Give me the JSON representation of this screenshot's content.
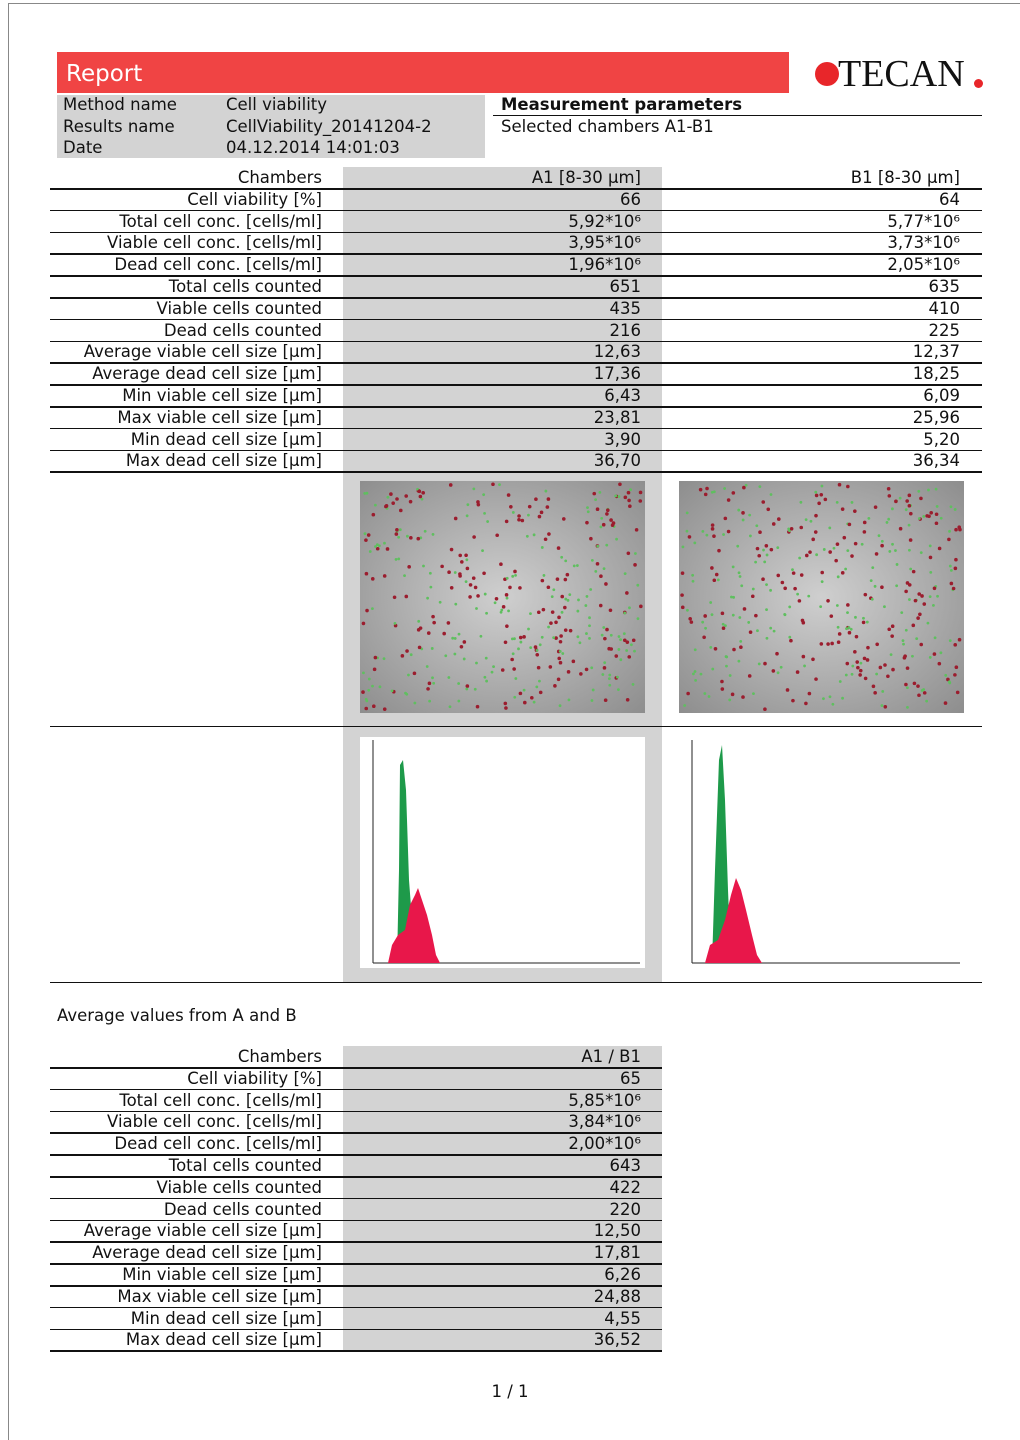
{
  "header": {
    "title": "Report",
    "logo": "TECAN"
  },
  "info": {
    "rows": [
      [
        "Method name",
        "Cell viability"
      ],
      [
        "Results name",
        "CellViability_20141204-2"
      ],
      [
        "Date",
        "04.12.2014 14:01:03"
      ]
    ]
  },
  "measurement_parameters": {
    "title": "Measurement parameters",
    "text": "Selected chambers A1-B1"
  },
  "table": {
    "header": [
      "Chambers",
      "A1 [8-30 µm]",
      "B1 [8-30 µm]"
    ],
    "rows": [
      [
        "Cell viability [%]",
        "66",
        "64"
      ],
      [
        "Total cell conc. [cells/ml]",
        "5,92*10⁶",
        "5,77*10⁶"
      ],
      [
        "Viable cell conc. [cells/ml]",
        "3,95*10⁶",
        "3,73*10⁶"
      ],
      [
        "Dead cell conc. [cells/ml]",
        "1,96*10⁶",
        "2,05*10⁶"
      ],
      [
        "Total cells counted",
        "651",
        "635"
      ],
      [
        "Viable cells counted",
        "435",
        "410"
      ],
      [
        "Dead cells counted",
        "216",
        "225"
      ],
      [
        "Average viable cell size [µm]",
        "12,63",
        "12,37"
      ],
      [
        "Average dead cell size [µm]",
        "17,36",
        "18,25"
      ],
      [
        "Min viable cell size [µm]",
        "6,43",
        "6,09"
      ],
      [
        "Max viable cell size [µm]",
        "23,81",
        "25,96"
      ],
      [
        "Min dead cell size [µm]",
        "3,90",
        "5,20"
      ],
      [
        "Max dead cell size [µm]",
        "36,70",
        "36,34"
      ]
    ]
  },
  "averages": {
    "title": "Average values from A and B",
    "header": [
      "Chambers",
      "A1 / B1"
    ],
    "rows": [
      [
        "Cell viability [%]",
        "65"
      ],
      [
        "Total cell conc. [cells/ml]",
        "5,85*10⁶"
      ],
      [
        "Viable cell conc. [cells/ml]",
        "3,84*10⁶"
      ],
      [
        "Dead cell conc. [cells/ml]",
        "2,00*10⁶"
      ],
      [
        "Total cells counted",
        "643"
      ],
      [
        "Viable cells counted",
        "422"
      ],
      [
        "Dead cells counted",
        "220"
      ],
      [
        "Average viable cell size [µm]",
        "12,50"
      ],
      [
        "Average dead cell size [µm]",
        "17,81"
      ],
      [
        "Min viable cell size [µm]",
        "6,26"
      ],
      [
        "Max viable cell size [µm]",
        "24,88"
      ],
      [
        "Min dead cell size [µm]",
        "4,55"
      ],
      [
        "Max dead cell size [µm]",
        "36,52"
      ]
    ]
  },
  "footer": {
    "page": "1 / 1"
  }
}
